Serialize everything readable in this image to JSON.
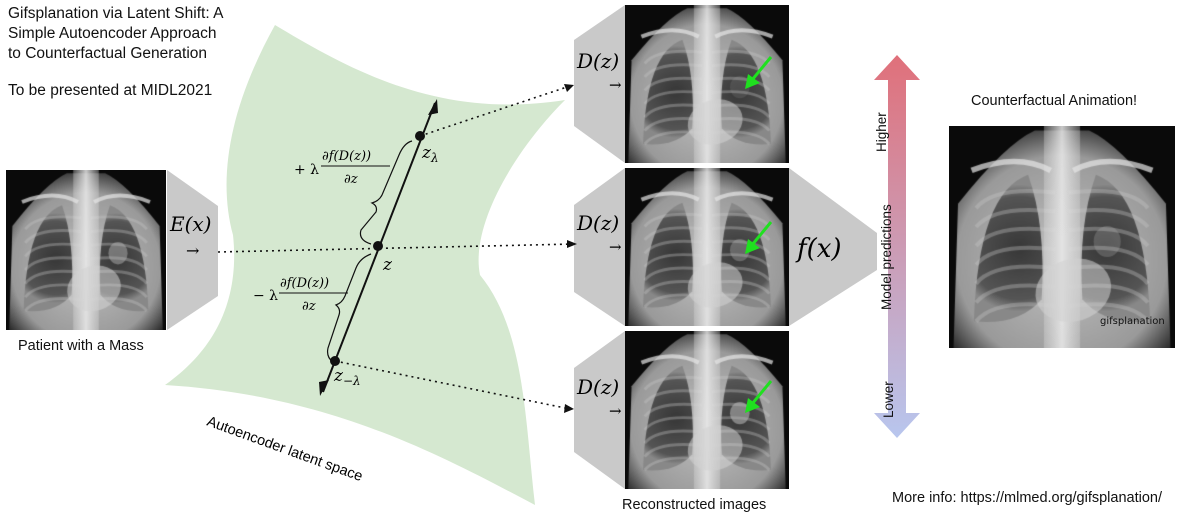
{
  "title_lines": [
    "Gifsplanation via Latent Shift: A",
    "Simple Autoencoder Approach",
    "to Counterfactual Generation"
  ],
  "venue": "To be presented at MIDL2021",
  "input_caption": "Patient with a Mass",
  "encoder_label": "E(x)",
  "arrow_glyph": "→",
  "latent_space_label": "Autoencoder latent space",
  "point_labels": {
    "z_plus": "z",
    "z_plus_sub": "λ",
    "z": "z",
    "z_minus": "z",
    "z_minus_sub": "−λ"
  },
  "gradient_plus": {
    "sign": "+ λ",
    "numerator": "∂f(D(z))",
    "denominator": "∂z"
  },
  "gradient_minus": {
    "sign": "− λ",
    "numerator": "∂f(D(z))",
    "denominator": "∂z"
  },
  "decoder_label": "D(z)",
  "reconstructed_caption": "Reconstructed images",
  "classifier_label": "f(x)",
  "scale": {
    "title": "Model predictions",
    "high": "Higher",
    "low": "Lower",
    "top_color": "#e0707a",
    "bottom_color": "#b8c6ee"
  },
  "animation_title": "Counterfactual Animation!",
  "watermark": "gifsplanation",
  "more_info": "More info: https://mlmed.org/gifsplanation/",
  "colors": {
    "latent": "#d5e8d0",
    "funnel": "#c9c9c9",
    "arrow_green": "#1fe01f"
  }
}
